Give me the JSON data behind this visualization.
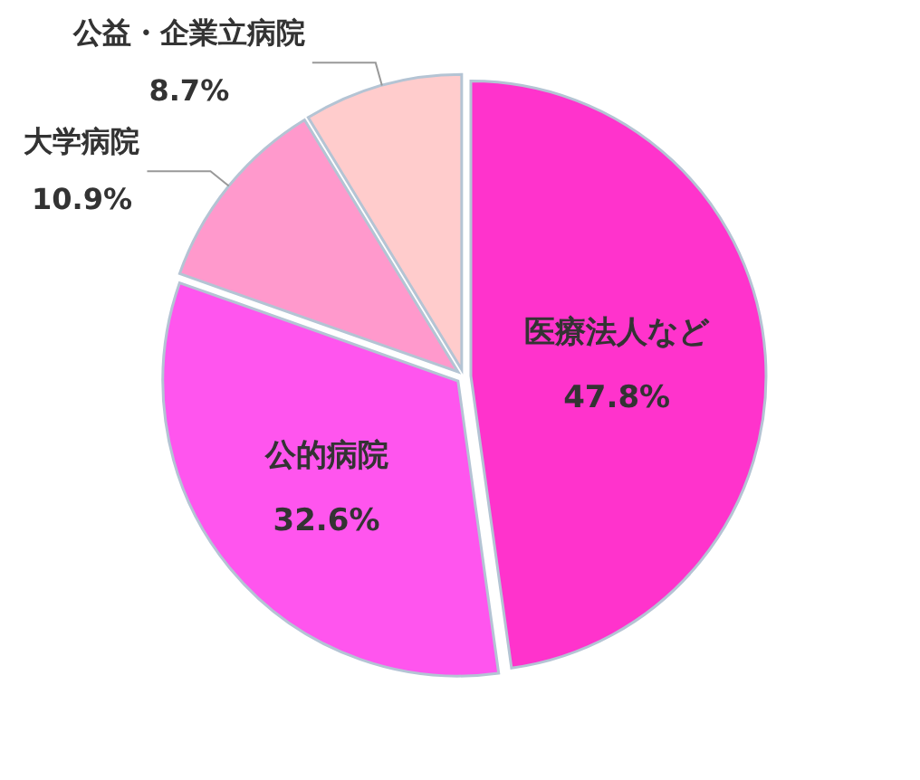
{
  "chart_data": {
    "type": "pie",
    "categories": [
      "医療法人など",
      "公的病院",
      "大学病院",
      "公益・企業立病院"
    ],
    "values": [
      47.8,
      32.6,
      10.9,
      8.7
    ],
    "value_labels": [
      "47.8%",
      "32.6%",
      "10.9%",
      "8.7%"
    ],
    "colors": [
      "#ff33cc",
      "#ff55ee",
      "#ff99cc",
      "#ffcccc"
    ]
  }
}
